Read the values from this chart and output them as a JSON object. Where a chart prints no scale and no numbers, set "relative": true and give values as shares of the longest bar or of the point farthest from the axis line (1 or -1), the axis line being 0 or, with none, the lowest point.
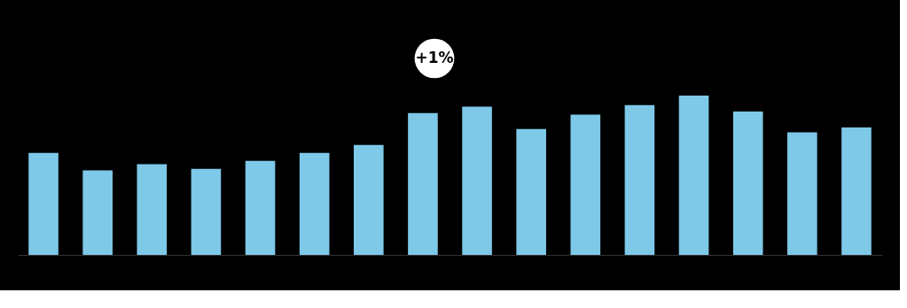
{
  "chart_data": {
    "type": "bar",
    "relative": true,
    "categories": [
      null,
      null,
      null,
      null,
      null,
      null,
      null,
      null,
      null,
      null,
      null,
      null,
      null,
      null,
      null,
      null
    ],
    "series": [
      {
        "color": "#7ec8e8",
        "values": [
          0.64,
          0.53,
          0.57,
          0.54,
          0.59,
          0.64,
          0.69,
          0.89,
          0.93,
          0.79,
          0.88,
          0.94,
          1,
          0.9,
          0.77,
          0.8
        ]
      }
    ],
    "annotations": [
      "+1%"
    ]
  }
}
